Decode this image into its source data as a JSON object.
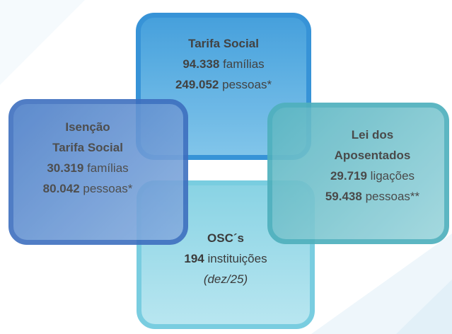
{
  "boxes": [
    {
      "title": [
        "Tarifa Social"
      ],
      "lines": [
        {
          "number": "94.338",
          "unit": "famílias"
        },
        {
          "number": "249.052",
          "unit": "pessoas*"
        }
      ]
    },
    {
      "title": [
        "Isenção",
        "Tarifa Social"
      ],
      "lines": [
        {
          "number": "30.319",
          "unit": "famílias"
        },
        {
          "number": "80.042",
          "unit": "pessoas*"
        }
      ]
    },
    {
      "title": [
        "Lei dos",
        "Aposentados"
      ],
      "lines": [
        {
          "number": "29.719",
          "unit": "ligações"
        },
        {
          "number": "59.438",
          "unit": "pessoas**"
        }
      ]
    },
    {
      "title": [
        "OSC´s"
      ],
      "lines": [
        {
          "number": "194",
          "unit": "instituições"
        }
      ],
      "note": "(dez/25)"
    }
  ]
}
